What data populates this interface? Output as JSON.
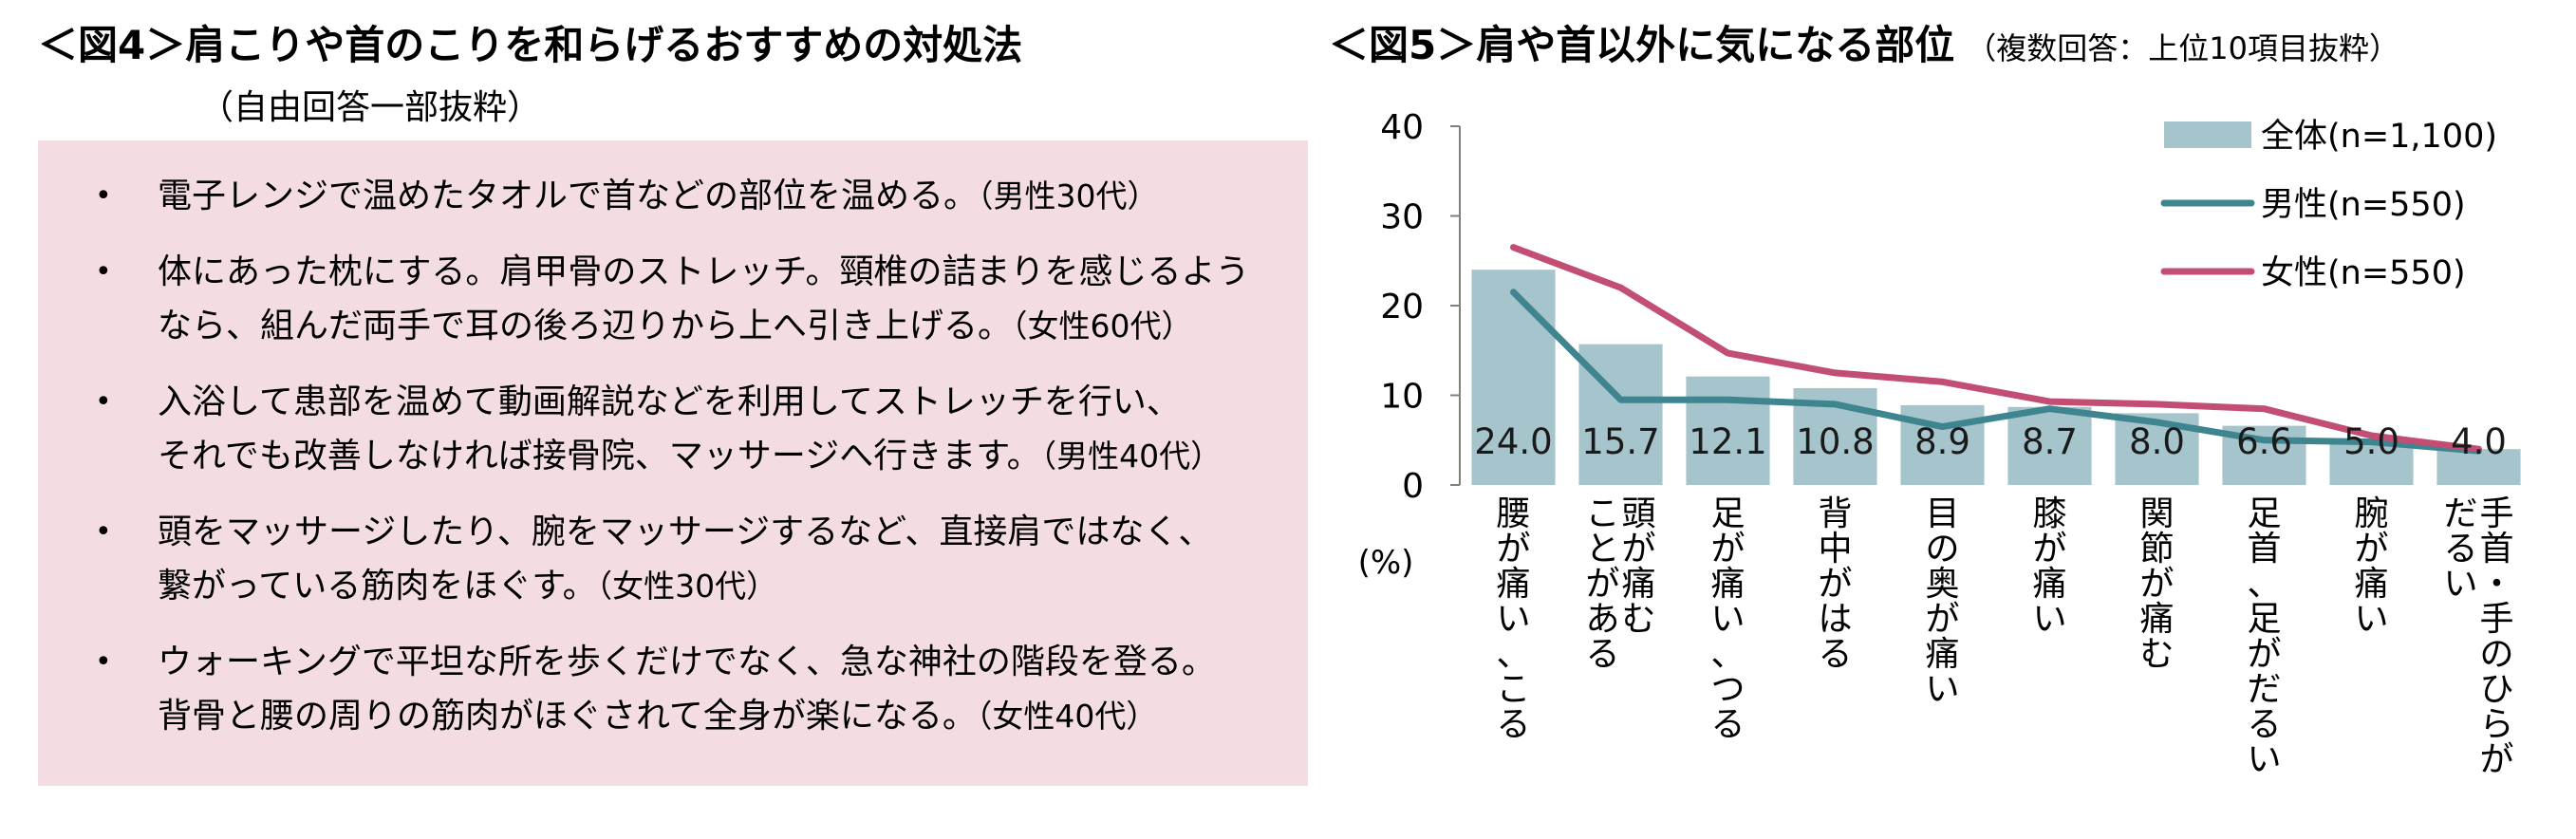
{
  "fig4": {
    "title": "＜図4＞肩こりや首のこりを和らげるおすすめの対処法",
    "subtitle": "（自由回答一部抜粋）",
    "bullet": "•",
    "items": [
      {
        "lines": [
          "電子レンジで温めたタオルで首などの部位を温める。"
        ],
        "tag": "（男性30代）"
      },
      {
        "lines": [
          "体にあった枕にする。肩甲骨のストレッチ。頸椎の詰まりを感じるよう",
          "なら、組んだ両手で耳の後ろ辺りから上へ引き上げる。"
        ],
        "tag": "（女性60代）"
      },
      {
        "lines": [
          "入浴して患部を温めて動画解説などを利用してストレッチを行い、",
          "それでも改善しなければ接骨院、マッサージへ行きます。"
        ],
        "tag": "（男性40代）"
      },
      {
        "lines": [
          "頭をマッサージしたり、腕をマッサージするなど、直接肩ではなく、",
          "繋がっている筋肉をほぐす。"
        ],
        "tag": "（女性30代）"
      },
      {
        "lines": [
          "ウォーキングで平坦な所を歩くだけでなく、急な神社の階段を登る。",
          "背骨と腰の周りの筋肉がほぐされて全身が楽になる。"
        ],
        "tag": "（女性40代）"
      }
    ]
  },
  "fig5": {
    "title": "＜図5＞肩や首以外に気になる部位",
    "note": "（複数回答：上位10項目抜粋）"
  },
  "chart_data": {
    "type": "bar",
    "title": "＜図5＞肩や首以外に気になる部位",
    "ylabel": "(%)",
    "ylim": [
      0,
      40
    ],
    "yticks": [
      0,
      10,
      20,
      30,
      40
    ],
    "grid": false,
    "legend_position": "top-right",
    "categories": [
      "腰が痛い、こる",
      "頭が痛むことがある",
      "足が痛い、つる",
      "背中がはる",
      "目の奥が痛い",
      "膝が痛い",
      "関節が痛む",
      "足首、足がだるい",
      "腕が痛い",
      "手首・手のひらがだるい"
    ],
    "category_lines": [
      [
        "腰が痛い、こる"
      ],
      [
        "頭が痛む",
        "ことがある"
      ],
      [
        "足が痛い、つる"
      ],
      [
        "背中がはる"
      ],
      [
        "目の奥が痛い"
      ],
      [
        "膝が痛い"
      ],
      [
        "関節が痛む"
      ],
      [
        "足首、足がだるい"
      ],
      [
        "腕が痛い"
      ],
      [
        "手首・手のひらが",
        "だるい"
      ]
    ],
    "series": [
      {
        "name": "全体(n=1,100)",
        "kind": "bar",
        "color": "#a6c4cb",
        "values": [
          24.0,
          15.7,
          12.1,
          10.8,
          8.9,
          8.7,
          8.0,
          6.6,
          5.0,
          4.0
        ]
      },
      {
        "name": "男性(n=550)",
        "kind": "line",
        "color": "#3f8590",
        "values": [
          21.5,
          9.5,
          9.5,
          9.0,
          6.5,
          8.5,
          7.0,
          5.0,
          4.8,
          3.8
        ]
      },
      {
        "name": "女性(n=550)",
        "kind": "line",
        "color": "#c24e74",
        "values": [
          26.5,
          22.0,
          14.7,
          12.5,
          11.5,
          9.3,
          9.0,
          8.5,
          5.5,
          4.0
        ]
      }
    ],
    "data_labels": [
      "24.0",
      "15.7",
      "12.1",
      "10.8",
      "8.9",
      "8.7",
      "8.0",
      "6.6",
      "5.0",
      "4.0"
    ]
  }
}
